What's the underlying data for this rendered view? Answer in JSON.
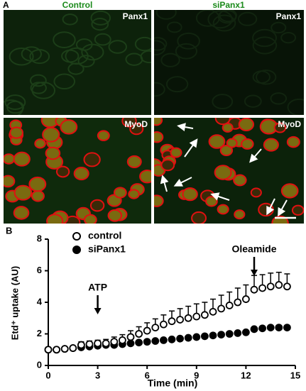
{
  "panel_a": {
    "label": "A",
    "columns": [
      "Control",
      "siPanx1"
    ],
    "stains": [
      "Panx1",
      "MyoD"
    ]
  },
  "chart_data": {
    "type": "line",
    "panel_label": "B",
    "x_label": "Time (min)",
    "y_label": "Etd⁺ uptake (AU)",
    "x": [
      0,
      0.5,
      1,
      1.5,
      2,
      2.5,
      3,
      3.5,
      4,
      4.5,
      5,
      5.5,
      6,
      6.5,
      7,
      7.5,
      8,
      8.5,
      9,
      9.5,
      10,
      10.5,
      11,
      11.5,
      12,
      12.5,
      13,
      13.5,
      14,
      14.5
    ],
    "series": [
      {
        "name": "control",
        "color": "#000000",
        "marker": "open",
        "values": [
          1.0,
          1.0,
          1.05,
          1.1,
          1.3,
          1.35,
          1.4,
          1.4,
          1.5,
          1.6,
          1.8,
          2.0,
          2.2,
          2.4,
          2.6,
          2.8,
          2.9,
          3.0,
          3.1,
          3.2,
          3.4,
          3.6,
          3.8,
          4.0,
          4.2,
          4.8,
          4.9,
          5.0,
          5.1,
          5.0
        ],
        "errors": [
          0.05,
          0.05,
          0.1,
          0.1,
          0.2,
          0.2,
          0.2,
          0.25,
          0.3,
          0.35,
          0.4,
          0.45,
          0.5,
          0.55,
          0.6,
          0.65,
          0.7,
          0.75,
          0.8,
          0.8,
          0.8,
          0.85,
          0.85,
          0.9,
          0.9,
          0.9,
          0.85,
          0.85,
          0.8,
          0.8
        ]
      },
      {
        "name": "siPanx1",
        "color": "#000000",
        "marker": "filled",
        "values": [
          1.0,
          1.0,
          1.05,
          1.1,
          1.15,
          1.2,
          1.25,
          1.3,
          1.3,
          1.35,
          1.4,
          1.45,
          1.5,
          1.55,
          1.6,
          1.65,
          1.7,
          1.75,
          1.8,
          1.85,
          1.9,
          1.95,
          2.0,
          2.05,
          2.1,
          2.3,
          2.35,
          2.4,
          2.4,
          2.4
        ],
        "errors": [
          0.05,
          0.05,
          0.05,
          0.05,
          0.05,
          0.05,
          0.05,
          0.05,
          0.05,
          0.05,
          0.05,
          0.05,
          0.05,
          0.05,
          0.05,
          0.05,
          0.05,
          0.05,
          0.05,
          0.05,
          0.05,
          0.05,
          0.05,
          0.05,
          0.05,
          0.1,
          0.1,
          0.1,
          0.1,
          0.1
        ]
      }
    ],
    "annotations": [
      {
        "text": "ATP",
        "x": 3
      },
      {
        "text": "Oleamide",
        "x": 12.5
      }
    ],
    "xlim": [
      0,
      15
    ],
    "xticks": [
      0,
      3,
      6,
      9,
      12,
      15
    ],
    "ylim": [
      0,
      8
    ],
    "yticks": [
      0,
      2,
      4,
      6,
      8
    ],
    "legend": "upper left"
  }
}
